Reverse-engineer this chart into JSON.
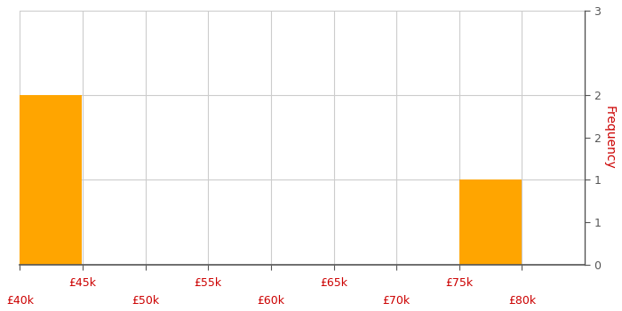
{
  "bin_edges": [
    40000,
    45000,
    50000,
    55000,
    60000,
    65000,
    70000,
    75000,
    80000,
    85000
  ],
  "frequencies": [
    2,
    0,
    0,
    0,
    0,
    0,
    0,
    1,
    0
  ],
  "bar_color": "#FFA500",
  "bar_edgecolor": "#FFA500",
  "ylim": [
    0,
    3
  ],
  "yticks_major": [
    0,
    1,
    2,
    3
  ],
  "yticks_minor": [
    0.5,
    1.5,
    2.5
  ],
  "ylabel": "Frequency",
  "ylabel_color": "#cc0000",
  "xtick_positions_all": [
    40000,
    45000,
    50000,
    55000,
    60000,
    65000,
    70000,
    75000,
    80000
  ],
  "xtick_bottom": [
    40000,
    50000,
    60000,
    70000,
    80000
  ],
  "xtick_top_offset": [
    45000,
    55000,
    65000,
    75000
  ],
  "xtick_bottom_labels": [
    "£40k",
    "£50k",
    "£60k",
    "£70k",
    "£80k"
  ],
  "xtick_top_labels": [
    "£45k",
    "£55k",
    "£65k",
    "£75k"
  ],
  "grid_color": "#cccccc",
  "background_color": "#ffffff",
  "tick_label_color": "#cc0000",
  "right_ytick_labels": [
    "0",
    "1",
    "1",
    "2",
    "2",
    "3"
  ],
  "right_ytick_positions": [
    0,
    0.5,
    1,
    1.5,
    2,
    3
  ],
  "figsize": [
    7.0,
    3.5
  ],
  "dpi": 100
}
